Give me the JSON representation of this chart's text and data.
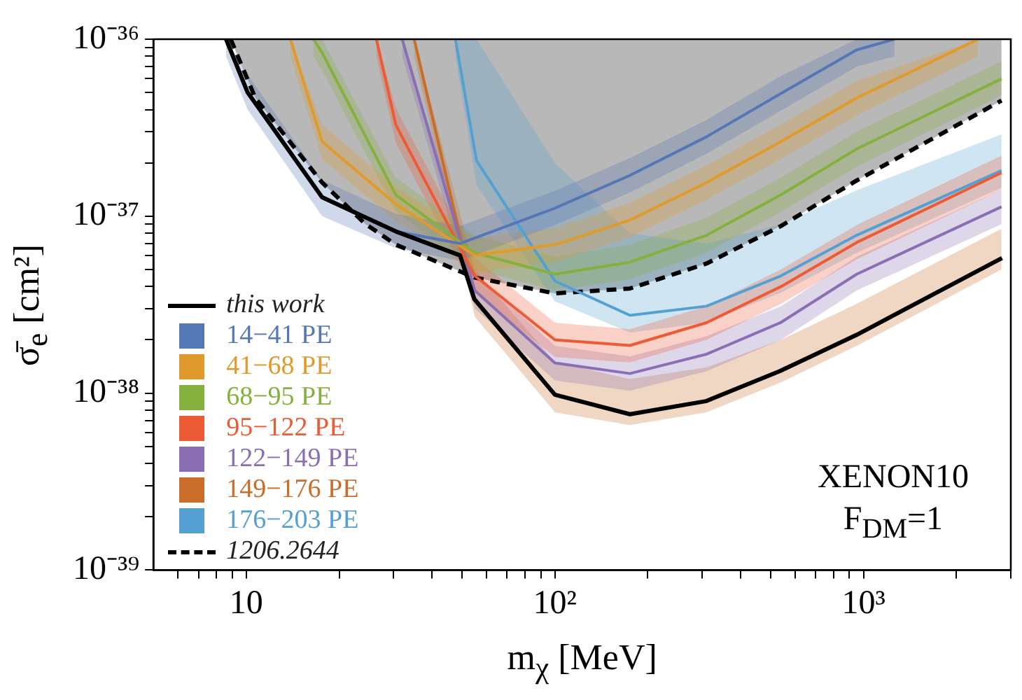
{
  "chart_data": {
    "type": "line",
    "xlabel": "m$_{χ}$ [MeV]",
    "ylabel": "σ̄$_{e}$ [cm²]",
    "log": "xy",
    "xlim": [
      5,
      3000
    ],
    "ylim": [
      1e-39,
      1e-36
    ],
    "xticks": [
      {
        "value": 6,
        "label": null
      },
      {
        "value": 7,
        "label": null
      },
      {
        "value": 8,
        "label": null
      },
      {
        "value": 9,
        "label": null
      },
      {
        "value": 10,
        "label": "10"
      },
      {
        "value": 20,
        "label": null
      },
      {
        "value": 30,
        "label": null
      },
      {
        "value": 40,
        "label": null
      },
      {
        "value": 50,
        "label": null
      },
      {
        "value": 60,
        "label": null
      },
      {
        "value": 70,
        "label": null
      },
      {
        "value": 80,
        "label": null
      },
      {
        "value": 90,
        "label": null
      },
      {
        "value": 100,
        "label": "10²"
      },
      {
        "value": 200,
        "label": null
      },
      {
        "value": 300,
        "label": null
      },
      {
        "value": 400,
        "label": null
      },
      {
        "value": 500,
        "label": null
      },
      {
        "value": 600,
        "label": null
      },
      {
        "value": 700,
        "label": null
      },
      {
        "value": 800,
        "label": null
      },
      {
        "value": 900,
        "label": null
      },
      {
        "value": 1000,
        "label": "10³"
      },
      {
        "value": 2000,
        "label": null
      },
      {
        "value": 3000,
        "label": null
      }
    ],
    "yticks": [
      {
        "value": 1e-39,
        "label": "10⁻³⁹"
      },
      {
        "value": 2e-39,
        "label": null
      },
      {
        "value": 3e-39,
        "label": null
      },
      {
        "value": 4e-39,
        "label": null
      },
      {
        "value": 5e-39,
        "label": null
      },
      {
        "value": 6e-39,
        "label": null
      },
      {
        "value": 7e-39,
        "label": null
      },
      {
        "value": 8e-39,
        "label": null
      },
      {
        "value": 9e-39,
        "label": null
      },
      {
        "value": 1e-38,
        "label": "10⁻³⁸"
      },
      {
        "value": 2e-38,
        "label": null
      },
      {
        "value": 3e-38,
        "label": null
      },
      {
        "value": 4e-38,
        "label": null
      },
      {
        "value": 5e-38,
        "label": null
      },
      {
        "value": 6e-38,
        "label": null
      },
      {
        "value": 7e-38,
        "label": null
      },
      {
        "value": 8e-38,
        "label": null
      },
      {
        "value": 9e-38,
        "label": null
      },
      {
        "value": 1e-37,
        "label": "10⁻³⁷"
      },
      {
        "value": 2e-37,
        "label": null
      },
      {
        "value": 3e-37,
        "label": null
      },
      {
        "value": 4e-37,
        "label": null
      },
      {
        "value": 5e-37,
        "label": null
      },
      {
        "value": 6e-37,
        "label": null
      },
      {
        "value": 7e-37,
        "label": null
      },
      {
        "value": 8e-37,
        "label": null
      },
      {
        "value": 9e-37,
        "label": null
      },
      {
        "value": 1e-36,
        "label": "10⁻³⁶"
      }
    ],
    "grid": false,
    "legend": "bottom left",
    "annotations": [
      "XENON10",
      "F$_{DM}$=1"
    ],
    "series": [
      {
        "name": "this work",
        "color": "#000000",
        "x": [
          8.6,
          10.1,
          17.6,
          30.5,
          49.3,
          54.8,
          100,
          175,
          308,
          535,
          948,
          2810
        ],
        "values": [
          1e-36,
          5e-37,
          1.28e-37,
          8.2e-38,
          6e-38,
          3.4e-38,
          9.8e-39,
          7.6e-39,
          9e-39,
          1.33e-38,
          2.13e-38,
          5.8e-38
        ]
      },
      {
        "name": "14−41 PE",
        "color": "#5577b5",
        "x": [
          8.6,
          10.1,
          17.6,
          30.5,
          49.3,
          100,
          175,
          310,
          540,
          950,
          1260
        ],
        "values": [
          1e-36,
          5e-37,
          1.28e-37,
          8.2e-38,
          7e-38,
          1.11e-37,
          1.7e-37,
          2.81e-37,
          4.94e-37,
          8.7e-37,
          1e-36
        ],
        "lower": [
          8e-37,
          4e-37,
          1e-37,
          6.6e-38,
          5.6e-38,
          8.9e-38,
          1.36e-37,
          2.25e-37,
          3.95e-37,
          7e-37,
          8e-37
        ],
        "upper": [
          1e-36,
          6.3e-37,
          1.6e-37,
          1.03e-37,
          8.8e-38,
          1.39e-37,
          2.13e-37,
          3.5e-37,
          6.2e-37,
          1e-36,
          1e-36
        ]
      },
      {
        "name": "41−68 PE",
        "color": "#e09a2c",
        "x": [
          13.9,
          17.6,
          30.5,
          55,
          100,
          175,
          310,
          540,
          950,
          2350
        ],
        "values": [
          1e-36,
          2.64e-37,
          1.17e-37,
          6e-38,
          6.9e-38,
          9.5e-38,
          1.55e-37,
          2.64e-37,
          4.65e-37,
          1e-36
        ],
        "lower": [
          8e-37,
          2.1e-37,
          9.4e-38,
          4.8e-38,
          5.5e-38,
          7.6e-38,
          1.24e-37,
          2.1e-37,
          3.7e-37,
          8e-37
        ],
        "upper": [
          1e-36,
          3.3e-37,
          1.46e-37,
          7.5e-38,
          8.6e-38,
          1.19e-37,
          1.94e-37,
          3.3e-37,
          5.8e-37,
          1e-36
        ]
      },
      {
        "name": "68−95 PE",
        "color": "#86b03e",
        "x": [
          16.5,
          17.6,
          30.5,
          55,
          100,
          175,
          310,
          540,
          950,
          2800
        ],
        "values": [
          1e-36,
          8.4e-37,
          1.32e-37,
          6.2e-38,
          4.7e-38,
          5.5e-38,
          7.8e-38,
          1.32e-37,
          2.4e-37,
          5.97e-37
        ],
        "lower": [
          8e-37,
          6.7e-37,
          1.06e-37,
          5e-38,
          3.8e-38,
          4.4e-38,
          6.2e-38,
          1.06e-37,
          1.9e-37,
          4.8e-37
        ],
        "upper": [
          1e-36,
          1e-36,
          1.65e-37,
          7.8e-38,
          5.9e-38,
          6.9e-38,
          9.8e-38,
          1.65e-37,
          3e-37,
          7.5e-37
        ]
      },
      {
        "name": "95−122 PE",
        "color": "#ec5b36",
        "x": [
          26.4,
          30.5,
          55,
          100,
          175,
          310,
          540,
          950,
          2800
        ],
        "values": [
          1e-36,
          3.29e-37,
          4.6e-38,
          2e-38,
          1.86e-38,
          2.5e-38,
          4e-38,
          7.1e-38,
          1.76e-37
        ],
        "lower": [
          8e-37,
          2.6e-37,
          3.7e-38,
          1.6e-38,
          1.49e-38,
          2e-38,
          3.2e-38,
          5.7e-38,
          1.41e-37
        ],
        "upper": [
          1e-36,
          4.1e-37,
          5.8e-38,
          2.5e-38,
          2.3e-38,
          3.1e-38,
          5e-38,
          8.9e-38,
          2.2e-37
        ]
      },
      {
        "name": "122−149 PE",
        "color": "#8a6fb5",
        "x": [
          32,
          55,
          100,
          175,
          310,
          540,
          950,
          2800
        ],
        "values": [
          1e-36,
          3.8e-38,
          1.48e-38,
          1.29e-38,
          1.66e-38,
          2.51e-38,
          4.7e-38,
          1.13e-37
        ],
        "lower": [
          8e-37,
          3e-38,
          1.18e-38,
          1.03e-38,
          1.33e-38,
          2e-38,
          3.8e-38,
          9e-38
        ],
        "upper": [
          1e-36,
          4.8e-38,
          1.85e-38,
          1.61e-38,
          2.1e-38,
          3.1e-38,
          5.9e-38,
          1.41e-37
        ]
      },
      {
        "name": "149−176 PE",
        "color": "#c96e2a",
        "x": [
          35,
          55,
          100,
          175,
          310,
          540,
          950,
          2800
        ],
        "values": [
          1e-36,
          3.4e-38,
          null,
          null,
          null,
          null,
          null,
          null
        ],
        "lower": [
          8e-37,
          2.7e-38,
          7.8e-39,
          6.6e-39,
          7.8e-39,
          1.15e-38,
          1.85e-38,
          5e-38
        ],
        "upper": [
          1e-36,
          5e-38,
          1.5e-38,
          1.2e-38,
          1.4e-38,
          2e-38,
          3.2e-38,
          8.5e-38
        ]
      },
      {
        "name": "176−203 PE",
        "color": "#55a0d2",
        "x": [
          47.6,
          55.7,
          100,
          175,
          310,
          540,
          950,
          2800
        ],
        "values": [
          1e-36,
          2.06e-37,
          4.3e-38,
          2.75e-38,
          3.1e-38,
          4.6e-38,
          7.8e-38,
          1.81e-37
        ],
        "lower": [
          8e-37,
          1.5e-37,
          3.3e-38,
          2.2e-38,
          2.5e-38,
          3.7e-38,
          6.2e-38,
          1.45e-37
        ],
        "upper": [
          1e-36,
          1e-36,
          2e-37,
          8e-38,
          7e-38,
          9e-38,
          1.4e-37,
          2.9e-37
        ]
      },
      {
        "name": "1206.2644",
        "color": "#000000",
        "line_style": "dashed",
        "x": [
          8.9,
          10.7,
          17.6,
          24.2,
          30.5,
          55,
          100,
          175,
          310,
          540,
          950,
          2800
        ],
        "values": [
          1e-36,
          4.65e-37,
          1.55e-37,
          9.1e-38,
          6.9e-38,
          4.5e-38,
          3.66e-38,
          3.9e-38,
          5.4e-38,
          8.8e-38,
          1.59e-37,
          4.5e-37
        ],
        "lower": [
          1e-36,
          4.65e-37,
          1.55e-37,
          9.1e-38,
          6.9e-38,
          4.5e-38,
          3.66e-38,
          3.9e-38,
          5.4e-38,
          8.8e-38,
          1.59e-37,
          4.5e-37
        ],
        "upper": [
          1e-36,
          1e-36,
          1e-36,
          1e-36,
          1e-36,
          1e-36,
          1e-36,
          1e-36,
          1e-36,
          1e-36,
          1e-36,
          1e-36
        ]
      }
    ]
  }
}
